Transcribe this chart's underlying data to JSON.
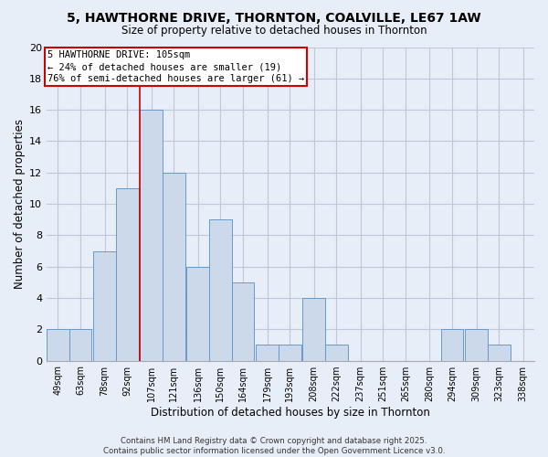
{
  "title": "5, HAWTHORNE DRIVE, THORNTON, COALVILLE, LE67 1AW",
  "subtitle": "Size of property relative to detached houses in Thornton",
  "xlabel": "Distribution of detached houses by size in Thornton",
  "ylabel": "Number of detached properties",
  "bin_edges": [
    49,
    63,
    78,
    92,
    107,
    121,
    136,
    150,
    164,
    179,
    193,
    208,
    222,
    237,
    251,
    265,
    280,
    294,
    309,
    323,
    338
  ],
  "counts": [
    2,
    2,
    7,
    11,
    16,
    12,
    6,
    9,
    5,
    1,
    1,
    4,
    1,
    0,
    0,
    0,
    0,
    2,
    2,
    1
  ],
  "bar_color": "#ccd9ea",
  "bar_edge_color": "#6699cc",
  "grid_color": "#c0c8d8",
  "bg_color": "#e8eef8",
  "vline_x": 107,
  "vline_color": "#cc0000",
  "annotation_line1": "5 HAWTHORNE DRIVE: 105sqm",
  "annotation_line2": "← 24% of detached houses are smaller (19)",
  "annotation_line3": "76% of semi-detached houses are larger (61) →",
  "annotation_box_color": "#ffffff",
  "annotation_box_edge": "#cc0000",
  "ylim": [
    0,
    20
  ],
  "yticks": [
    0,
    2,
    4,
    6,
    8,
    10,
    12,
    14,
    16,
    18,
    20
  ],
  "footer_line1": "Contains HM Land Registry data © Crown copyright and database right 2025.",
  "footer_line2": "Contains public sector information licensed under the Open Government Licence v3.0.",
  "tick_labels": [
    "49sqm",
    "63sqm",
    "78sqm",
    "92sqm",
    "107sqm",
    "121sqm",
    "136sqm",
    "150sqm",
    "164sqm",
    "179sqm",
    "193sqm",
    "208sqm",
    "222sqm",
    "237sqm",
    "251sqm",
    "265sqm",
    "280sqm",
    "294sqm",
    "309sqm",
    "323sqm",
    "338sqm"
  ]
}
